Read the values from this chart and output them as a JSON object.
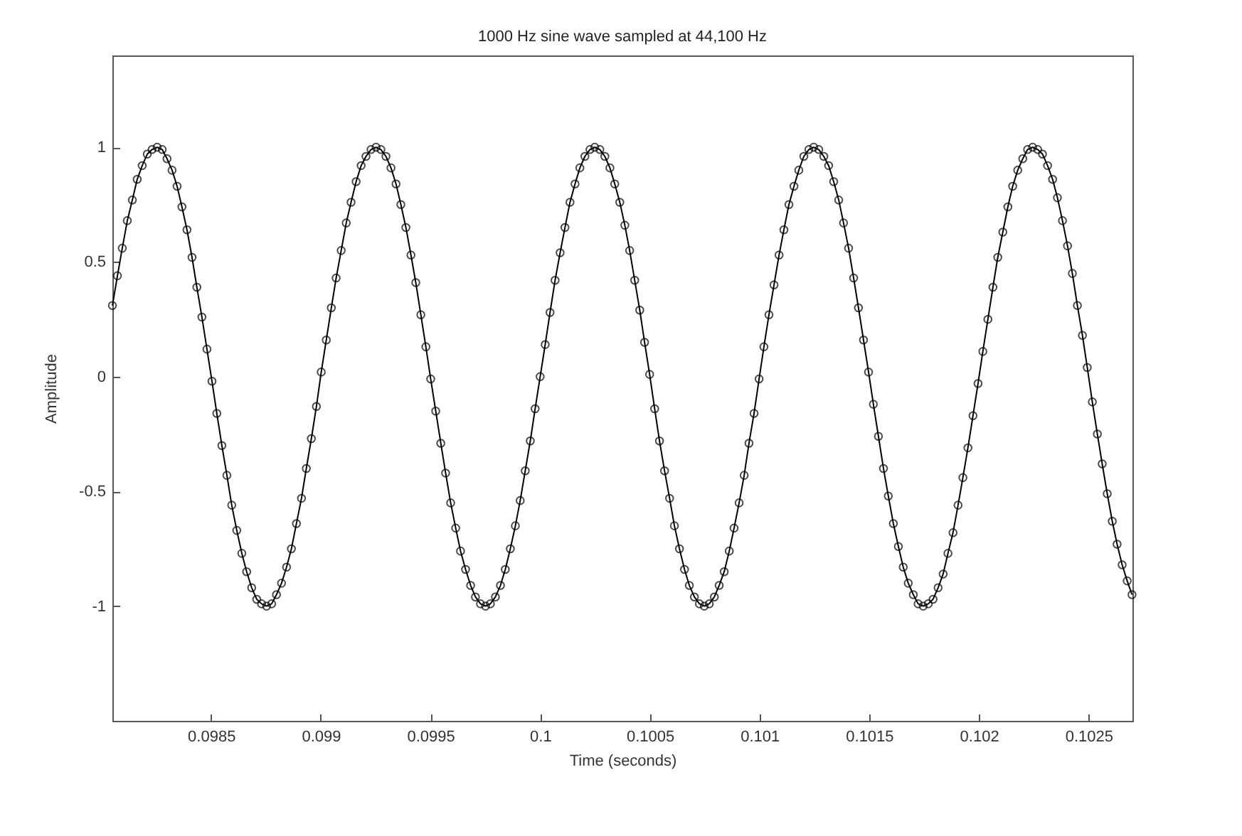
{
  "chart_data": {
    "type": "line",
    "title": "1000 Hz sine wave sampled at 44,100 Hz",
    "xlabel": "Time (seconds)",
    "ylabel": "Amplitude",
    "xlim": [
      0.09805,
      0.1027
    ],
    "ylim": [
      -1.5,
      1.4
    ],
    "xticks": [
      0.0985,
      0.099,
      0.0995,
      0.1,
      0.1005,
      0.101,
      0.1015,
      0.102,
      0.1025
    ],
    "yticks": [
      -1,
      -0.5,
      0,
      0.5,
      1
    ],
    "grid": false,
    "legend": false,
    "marker": "circle",
    "line_style": "solid",
    "x": [
      0.09805,
      0.098073,
      0.098095,
      0.098118,
      0.098141,
      0.098163,
      0.098186,
      0.098209,
      0.098231,
      0.098254,
      0.098277,
      0.098299,
      0.098322,
      0.098345,
      0.098367,
      0.09839,
      0.098413,
      0.098435,
      0.098458,
      0.098481,
      0.098504,
      0.098526,
      0.098549,
      0.098572,
      0.098594,
      0.098617,
      0.09864,
      0.098662,
      0.098685,
      0.098708,
      0.09873,
      0.098753,
      0.098776,
      0.098798,
      0.098821,
      0.098844,
      0.098866,
      0.098889,
      0.098912,
      0.098934,
      0.098957,
      0.09898,
      0.099002,
      0.099025,
      0.099048,
      0.09907,
      0.099093,
      0.099116,
      0.099138,
      0.099161,
      0.099184,
      0.099206,
      0.099229,
      0.099252,
      0.099274,
      0.099297,
      0.09932,
      0.099343,
      0.099365,
      0.099388,
      0.099411,
      0.099433,
      0.099456,
      0.099479,
      0.099501,
      0.099524,
      0.099547,
      0.099569,
      0.099592,
      0.099615,
      0.099637,
      0.09966,
      0.099683,
      0.099705,
      0.099728,
      0.099751,
      0.099773,
      0.099796,
      0.099819,
      0.099841,
      0.099864,
      0.099887,
      0.099909,
      0.099932,
      0.099955,
      0.099977,
      0.1,
      0.100023,
      0.100045,
      0.100068,
      0.100091,
      0.100113,
      0.100136,
      0.100159,
      0.100181,
      0.100204,
      0.100227,
      0.100249,
      0.100272,
      0.100295,
      0.100318,
      0.10034,
      0.100363,
      0.100386,
      0.100408,
      0.100431,
      0.100454,
      0.100476,
      0.100499,
      0.100522,
      0.100544,
      0.100567,
      0.10059,
      0.100612,
      0.100635,
      0.100658,
      0.10068,
      0.100703,
      0.100726,
      0.100748,
      0.100771,
      0.100794,
      0.100816,
      0.100839,
      0.100862,
      0.100884,
      0.100907,
      0.10093,
      0.100952,
      0.100975,
      0.100998,
      0.10102,
      0.101043,
      0.101066,
      0.101089,
      0.101111,
      0.101134,
      0.101157,
      0.101179,
      0.101202,
      0.101225,
      0.101247,
      0.10127,
      0.101293,
      0.101315,
      0.101338,
      0.101361,
      0.101383,
      0.101406,
      0.101429,
      0.101451,
      0.101474,
      0.101497,
      0.101519,
      0.101542,
      0.101565,
      0.101587,
      0.10161,
      0.101633,
      0.101655,
      0.101678,
      0.101701,
      0.101723,
      0.101746,
      0.101769,
      0.101791,
      0.101814,
      0.101837,
      0.101859,
      0.101882,
      0.101905,
      0.101927,
      0.10195,
      0.101973,
      0.101996,
      0.102018,
      0.102041,
      0.102064,
      0.102086,
      0.102109,
      0.102132,
      0.102154,
      0.102177,
      0.1022,
      0.102222,
      0.102245,
      0.102268,
      0.10229,
      0.102313,
      0.102336,
      0.102358,
      0.102381,
      0.102404,
      0.102426,
      0.102449,
      0.102472,
      0.102494,
      0.102517,
      0.10254,
      0.102562,
      0.102585,
      0.102608,
      0.10263,
      0.102653,
      0.102676,
      0.102698
    ],
    "series": [
      {
        "color": "#000000",
        "values": [
          0.31,
          0.44,
          0.56,
          0.68,
          0.77,
          0.86,
          0.92,
          0.97,
          0.99,
          1.0,
          0.99,
          0.95,
          0.9,
          0.83,
          0.74,
          0.64,
          0.52,
          0.39,
          0.26,
          0.12,
          -0.02,
          -0.16,
          -0.3,
          -0.43,
          -0.56,
          -0.67,
          -0.77,
          -0.85,
          -0.92,
          -0.97,
          -0.99,
          -1.0,
          -0.99,
          -0.95,
          -0.9,
          -0.83,
          -0.75,
          -0.64,
          -0.53,
          -0.4,
          -0.27,
          -0.13,
          0.02,
          0.16,
          0.3,
          0.43,
          0.55,
          0.67,
          0.76,
          0.85,
          0.92,
          0.96,
          0.99,
          1.0,
          0.99,
          0.96,
          0.91,
          0.84,
          0.75,
          0.65,
          0.53,
          0.41,
          0.27,
          0.13,
          -0.01,
          -0.15,
          -0.29,
          -0.42,
          -0.55,
          -0.66,
          -0.76,
          -0.84,
          -0.91,
          -0.96,
          -0.99,
          -1.0,
          -0.99,
          -0.96,
          -0.91,
          -0.84,
          -0.75,
          -0.65,
          -0.54,
          -0.41,
          -0.28,
          -0.14,
          0.0,
          0.14,
          0.28,
          0.42,
          0.54,
          0.65,
          0.76,
          0.84,
          0.91,
          0.96,
          0.99,
          1.0,
          0.99,
          0.96,
          0.91,
          0.84,
          0.76,
          0.66,
          0.55,
          0.42,
          0.29,
          0.15,
          0.01,
          -0.14,
          -0.28,
          -0.41,
          -0.53,
          -0.65,
          -0.75,
          -0.84,
          -0.91,
          -0.96,
          -0.99,
          -1.0,
          -0.99,
          -0.96,
          -0.91,
          -0.85,
          -0.76,
          -0.66,
          -0.55,
          -0.43,
          -0.29,
          -0.16,
          -0.01,
          0.13,
          0.27,
          0.4,
          0.53,
          0.64,
          0.75,
          0.83,
          0.9,
          0.96,
          0.99,
          1.0,
          0.99,
          0.96,
          0.92,
          0.85,
          0.77,
          0.67,
          0.56,
          0.43,
          0.3,
          0.16,
          0.02,
          -0.12,
          -0.26,
          -0.4,
          -0.52,
          -0.64,
          -0.74,
          -0.83,
          -0.9,
          -0.95,
          -0.99,
          -1.0,
          -0.99,
          -0.97,
          -0.92,
          -0.86,
          -0.77,
          -0.68,
          -0.56,
          -0.44,
          -0.31,
          -0.17,
          -0.03,
          0.11,
          0.25,
          0.39,
          0.52,
          0.63,
          0.74,
          0.83,
          0.9,
          0.95,
          0.99,
          1.0,
          0.99,
          0.97,
          0.92,
          0.86,
          0.78,
          0.68,
          0.57,
          0.45,
          0.31,
          0.18,
          0.04,
          -0.11,
          -0.25,
          -0.38,
          -0.51,
          -0.63,
          -0.73,
          -0.82,
          -0.89,
          -0.95
        ]
      }
    ]
  }
}
